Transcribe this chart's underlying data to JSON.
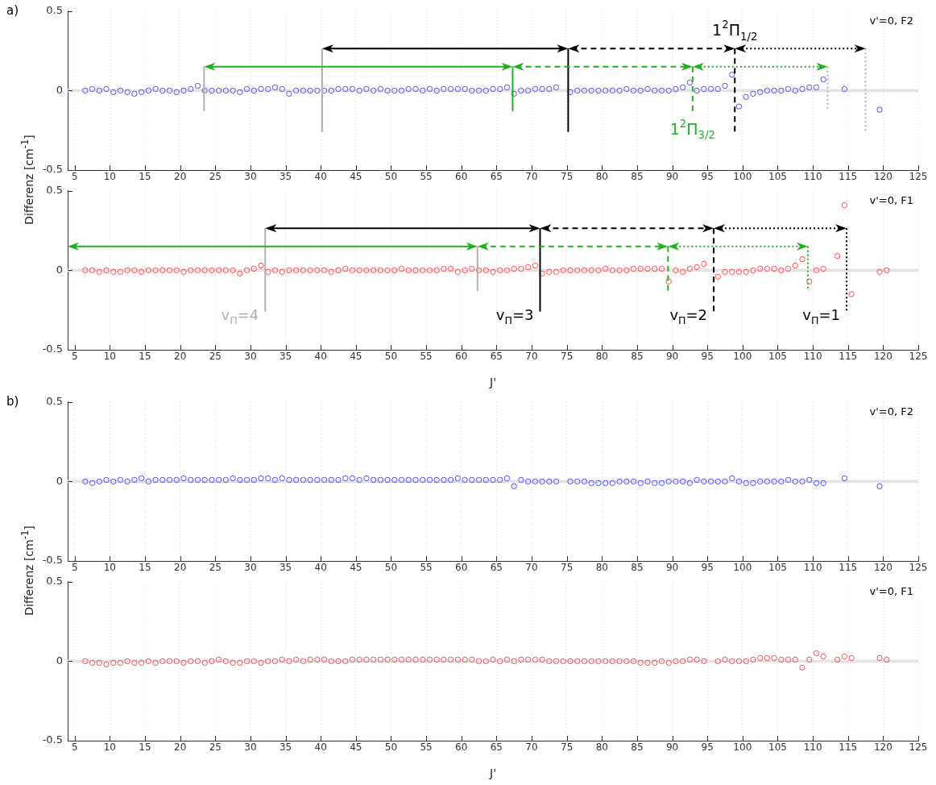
{
  "chart_data": [
    {
      "type": "scatter",
      "title": "a)",
      "subtitle": "v'=0, F2",
      "ylabel": "Differenz [cm$^{-1}$]",
      "marker": "circle",
      "grid": "x",
      "xlim": [
        4,
        125
      ],
      "xticks": [
        5,
        10,
        15,
        20,
        25,
        30,
        35,
        40,
        45,
        50,
        55,
        60,
        65,
        70,
        75,
        80,
        85,
        90,
        95,
        100,
        105,
        110,
        115,
        120,
        125
      ],
      "ylim": [
        -0.5,
        0.5
      ],
      "yticks": [
        -0.5,
        0,
        0.5
      ],
      "x": [
        6.5,
        7.5,
        8.5,
        9.5,
        10.5,
        11.5,
        12.5,
        13.5,
        14.5,
        15.5,
        16.5,
        17.5,
        18.5,
        19.5,
        20.5,
        21.5,
        22.5,
        23.5,
        24.5,
        25.5,
        26.5,
        27.5,
        28.5,
        29.5,
        30.5,
        31.5,
        32.5,
        33.5,
        34.5,
        35.5,
        36.5,
        37.5,
        38.5,
        39.5,
        40.5,
        41.5,
        42.5,
        43.5,
        44.5,
        45.5,
        46.5,
        47.5,
        48.5,
        49.5,
        50.5,
        51.5,
        52.5,
        53.5,
        54.5,
        55.5,
        56.5,
        57.5,
        58.5,
        59.5,
        60.5,
        61.5,
        62.5,
        63.5,
        64.5,
        65.5,
        66.5,
        67.5,
        68.5,
        69.5,
        70.5,
        71.5,
        72.5,
        73.5,
        75.5,
        76.5,
        77.5,
        78.5,
        79.5,
        80.5,
        81.5,
        82.5,
        83.5,
        84.5,
        85.5,
        86.5,
        87.5,
        88.5,
        89.5,
        90.5,
        91.5,
        92.5,
        93.5,
        94.5,
        95.5,
        96.5,
        97.5,
        98.5,
        99.5,
        100.5,
        101.5,
        102.5,
        103.5,
        104.5,
        105.5,
        106.5,
        107.5,
        108.5,
        109.5,
        110.5,
        111.5,
        114.5,
        119.5
      ],
      "series": [
        {
          "color": "#5050ff",
          "values": [
            0,
            0.01,
            0,
            0.01,
            -0.01,
            0,
            -0.01,
            -0.02,
            -0.01,
            0,
            0.01,
            0,
            0,
            -0.01,
            0,
            0.01,
            0.03,
            0,
            0,
            0,
            0,
            0,
            -0.01,
            0.01,
            0,
            0.01,
            0.01,
            0.02,
            0.01,
            -0.02,
            0,
            0,
            0,
            0,
            0,
            0,
            0.01,
            0.01,
            0.01,
            0,
            0.01,
            0,
            0.01,
            0,
            0,
            0,
            0.01,
            0.01,
            0,
            0.01,
            0,
            0.01,
            0.01,
            0.01,
            0.01,
            0,
            0,
            0,
            0.01,
            0.01,
            0.02,
            -0.02,
            0,
            0,
            0.01,
            0.01,
            0.01,
            0.02,
            -0.01,
            0,
            0,
            0,
            0,
            0,
            0,
            0,
            0.01,
            0,
            0,
            0.01,
            0,
            0,
            0,
            0.01,
            0.02,
            0.05,
            0,
            0.01,
            0.01,
            0.01,
            0.03,
            0.1,
            -0.1,
            -0.04,
            -0.02,
            -0.01,
            0,
            0,
            0,
            0.01,
            0,
            0.01,
            0.02,
            0.02,
            0.07,
            0.01,
            -0.12
          ]
        }
      ],
      "ref_lines": [
        {
          "axis": "x",
          "value": 23.4,
          "color": "#b0b0b0",
          "line_style": "solid"
        },
        {
          "axis": "x",
          "value": 40.2,
          "color": "#b0b0b0",
          "line_style": "solid"
        },
        {
          "axis": "x",
          "value": 67.3,
          "color": "#1db31d",
          "line_style": "solid"
        },
        {
          "axis": "x",
          "value": 75.2,
          "color": "#000000",
          "line_style": "solid"
        },
        {
          "axis": "x",
          "value": 92.9,
          "color": "#1db31d",
          "line_style": "dashed"
        },
        {
          "axis": "x",
          "value": 98.9,
          "color": "#000000",
          "line_style": "dashed"
        },
        {
          "axis": "x",
          "value": 112.1,
          "color": "#b0b0b0",
          "line_style": "dotted"
        },
        {
          "axis": "x",
          "value": 117.5,
          "color": "#b0b0b0",
          "line_style": "dotted"
        }
      ],
      "annotations": [
        {
          "text": "1$^{2}$Π$_{1/2}$",
          "x": 98.9,
          "y": 0.27
        },
        {
          "text": "1$^{2}$Π$_{3/2}$",
          "x": 92.9,
          "y": -0.13
        }
      ],
      "bands": [
        {
          "axis": "y",
          "from": -0.01,
          "to": 0.01,
          "color": "#e3e3e3"
        }
      ]
    },
    {
      "type": "scatter",
      "subtitle": "v'=0, F1",
      "xlabel": "J'",
      "marker": "circle",
      "grid": "x",
      "xlim": [
        4,
        125
      ],
      "xticks": [
        5,
        10,
        15,
        20,
        25,
        30,
        35,
        40,
        45,
        50,
        55,
        60,
        65,
        70,
        75,
        80,
        85,
        90,
        95,
        100,
        105,
        110,
        115,
        120,
        125
      ],
      "ylim": [
        -0.5,
        0.5
      ],
      "yticks": [
        -0.5,
        0,
        0.5
      ],
      "x": [
        6.5,
        7.5,
        8.5,
        9.5,
        10.5,
        11.5,
        12.5,
        13.5,
        14.5,
        15.5,
        16.5,
        17.5,
        18.5,
        19.5,
        20.5,
        21.5,
        22.5,
        23.5,
        24.5,
        25.5,
        26.5,
        27.5,
        28.5,
        29.5,
        30.5,
        31.5,
        32.5,
        33.5,
        34.5,
        35.5,
        36.5,
        37.5,
        38.5,
        39.5,
        40.5,
        41.5,
        42.5,
        43.5,
        44.5,
        45.5,
        46.5,
        47.5,
        48.5,
        49.5,
        50.5,
        51.5,
        52.5,
        53.5,
        54.5,
        55.5,
        56.5,
        57.5,
        58.5,
        59.5,
        60.5,
        61.5,
        62.5,
        63.5,
        64.5,
        65.5,
        66.5,
        67.5,
        68.5,
        69.5,
        70.5,
        71.5,
        72.5,
        73.5,
        74.5,
        75.5,
        76.5,
        77.5,
        78.5,
        79.5,
        80.5,
        81.5,
        82.5,
        83.5,
        84.5,
        85.5,
        86.5,
        87.5,
        88.5,
        89.5,
        90.5,
        91.5,
        92.5,
        93.5,
        94.5,
        96.5,
        97.5,
        98.5,
        99.5,
        100.5,
        101.5,
        102.5,
        103.5,
        104.5,
        105.5,
        106.5,
        107.5,
        108.5,
        109.5,
        110.5,
        111.5,
        113.5,
        114.5,
        115.5,
        119.5,
        120.5
      ],
      "series": [
        {
          "color": "#ff4d4d",
          "values": [
            0,
            0,
            -0.01,
            0,
            -0.01,
            -0.01,
            0,
            0,
            -0.01,
            0,
            0,
            0,
            0,
            0,
            -0.01,
            0,
            0,
            0,
            0,
            0,
            0,
            0,
            -0.02,
            0,
            0.01,
            0.03,
            -0.01,
            0,
            -0.01,
            0,
            0,
            0,
            0,
            0,
            0,
            -0.01,
            0,
            0.01,
            0,
            0,
            0,
            0,
            0,
            0,
            0,
            0.01,
            0,
            0,
            0,
            0,
            0,
            0.01,
            0.01,
            -0.01,
            0,
            0.01,
            0,
            0,
            -0.01,
            0,
            0,
            0.01,
            0.01,
            0.02,
            0.03,
            -0.02,
            -0.01,
            -0.01,
            0,
            0,
            0,
            0,
            0,
            0,
            0.01,
            0,
            0,
            0,
            0.01,
            0.01,
            0.01,
            0.01,
            0.01,
            -0.07,
            0,
            -0.01,
            0.01,
            0.02,
            0.04,
            -0.04,
            -0.01,
            -0.01,
            -0.01,
            -0.01,
            0,
            0.01,
            0.01,
            0.01,
            0,
            0.01,
            0.03,
            0.07,
            -0.07,
            0,
            0.01,
            0.09,
            0.41,
            -0.15,
            -0.01,
            0
          ]
        }
      ],
      "ref_lines": [
        {
          "axis": "x",
          "value": 32.1,
          "color": "#b0b0b0",
          "line_style": "solid"
        },
        {
          "axis": "x",
          "value": 62.3,
          "color": "#b0b0b0",
          "line_style": "solid"
        },
        {
          "axis": "x",
          "value": 71.2,
          "color": "#000000",
          "line_style": "solid"
        },
        {
          "axis": "x",
          "value": 89.4,
          "color": "#1db31d",
          "line_style": "dashed"
        },
        {
          "axis": "x",
          "value": 95.9,
          "color": "#000000",
          "line_style": "dashed"
        },
        {
          "axis": "x",
          "value": 109.3,
          "color": "#1db31d",
          "line_style": "dotted"
        },
        {
          "axis": "x",
          "value": 114.8,
          "color": "#000000",
          "line_style": "dotted"
        }
      ],
      "annotations": [
        {
          "text": "v$_{Π}$=4",
          "x": 32.1,
          "y": -0.26
        },
        {
          "text": "v$_{Π}$=3",
          "x": 71.2,
          "y": -0.26
        },
        {
          "text": "v$_{Π}$=2",
          "x": 95.9,
          "y": -0.26
        },
        {
          "text": "v$_{Π}$=1",
          "x": 114.8,
          "y": -0.26
        }
      ],
      "bands": [
        {
          "axis": "y",
          "from": -0.01,
          "to": 0.01,
          "color": "#e3e3e3"
        }
      ]
    },
    {
      "type": "scatter",
      "title": "b)",
      "subtitle": "v'=0, F2",
      "ylabel": "Differenz [cm$^{-1}$]",
      "marker": "circle",
      "grid": "x",
      "xlim": [
        4,
        125
      ],
      "xticks": [
        5,
        10,
        15,
        20,
        25,
        30,
        35,
        40,
        45,
        50,
        55,
        60,
        65,
        70,
        75,
        80,
        85,
        90,
        95,
        100,
        105,
        110,
        115,
        120,
        125
      ],
      "ylim": [
        -0.5,
        0.5
      ],
      "yticks": [
        -0.5,
        0,
        0.5
      ],
      "x": [
        6.5,
        7.5,
        8.5,
        9.5,
        10.5,
        11.5,
        12.5,
        13.5,
        14.5,
        15.5,
        16.5,
        17.5,
        18.5,
        19.5,
        20.5,
        21.5,
        22.5,
        23.5,
        24.5,
        25.5,
        26.5,
        27.5,
        28.5,
        29.5,
        30.5,
        31.5,
        32.5,
        33.5,
        34.5,
        35.5,
        36.5,
        37.5,
        38.5,
        39.5,
        40.5,
        41.5,
        42.5,
        43.5,
        44.5,
        45.5,
        46.5,
        47.5,
        48.5,
        49.5,
        50.5,
        51.5,
        52.5,
        53.5,
        54.5,
        55.5,
        56.5,
        57.5,
        58.5,
        59.5,
        60.5,
        61.5,
        62.5,
        63.5,
        64.5,
        65.5,
        66.5,
        67.5,
        68.5,
        69.5,
        70.5,
        71.5,
        72.5,
        73.5,
        75.5,
        76.5,
        77.5,
        78.5,
        79.5,
        80.5,
        81.5,
        82.5,
        83.5,
        84.5,
        85.5,
        86.5,
        87.5,
        88.5,
        89.5,
        90.5,
        91.5,
        92.5,
        93.5,
        94.5,
        95.5,
        96.5,
        97.5,
        98.5,
        99.5,
        100.5,
        101.5,
        102.5,
        103.5,
        104.5,
        105.5,
        106.5,
        107.5,
        108.5,
        109.5,
        110.5,
        111.5,
        114.5,
        119.5
      ],
      "series": [
        {
          "color": "#5050ff",
          "values": [
            0,
            -0.01,
            0,
            0.01,
            0,
            0.01,
            0,
            0.01,
            0.02,
            0,
            0.01,
            0.01,
            0.01,
            0.01,
            0.02,
            0.01,
            0.01,
            0.01,
            0.01,
            0.01,
            0.01,
            0.02,
            0.01,
            0.01,
            0.01,
            0.02,
            0.02,
            0.01,
            0.02,
            0.01,
            0.01,
            0.01,
            0.01,
            0.01,
            0.01,
            0.01,
            0.01,
            0.02,
            0.02,
            0.01,
            0.02,
            0.01,
            0.01,
            0.01,
            0.01,
            0.01,
            0.01,
            0.01,
            0.01,
            0.01,
            0.01,
            0.01,
            0.01,
            0.02,
            0.01,
            0.01,
            0.01,
            0.01,
            0.01,
            0.01,
            0.02,
            -0.03,
            0.01,
            0,
            0,
            0,
            0,
            0,
            0,
            0,
            0,
            -0.01,
            -0.01,
            -0.01,
            -0.01,
            0,
            0,
            0,
            -0.01,
            0,
            -0.01,
            -0.01,
            0,
            0,
            0,
            -0.01,
            0.01,
            0,
            0,
            0,
            0,
            0.02,
            0,
            -0.01,
            -0.01,
            0,
            0,
            0,
            0,
            0.01,
            0,
            0,
            0.01,
            -0.01,
            -0.01,
            0.02,
            -0.03
          ]
        }
      ],
      "bands": [
        {
          "axis": "y",
          "from": -0.01,
          "to": 0.01,
          "color": "#e3e3e3"
        }
      ]
    },
    {
      "type": "scatter",
      "subtitle": "v'=0, F1",
      "xlabel": "J'",
      "marker": "circle",
      "grid": "x",
      "xlim": [
        4,
        125
      ],
      "xticks": [
        5,
        10,
        15,
        20,
        25,
        30,
        35,
        40,
        45,
        50,
        55,
        60,
        65,
        70,
        75,
        80,
        85,
        90,
        95,
        100,
        105,
        110,
        115,
        120,
        125
      ],
      "ylim": [
        -0.5,
        0.5
      ],
      "yticks": [
        -0.5,
        0,
        0.5
      ],
      "x": [
        6.5,
        7.5,
        8.5,
        9.5,
        10.5,
        11.5,
        12.5,
        13.5,
        14.5,
        15.5,
        16.5,
        17.5,
        18.5,
        19.5,
        20.5,
        21.5,
        22.5,
        23.5,
        24.5,
        25.5,
        26.5,
        27.5,
        28.5,
        29.5,
        30.5,
        31.5,
        32.5,
        33.5,
        34.5,
        35.5,
        36.5,
        37.5,
        38.5,
        39.5,
        40.5,
        41.5,
        42.5,
        43.5,
        44.5,
        45.5,
        46.5,
        47.5,
        48.5,
        49.5,
        50.5,
        51.5,
        52.5,
        53.5,
        54.5,
        55.5,
        56.5,
        57.5,
        58.5,
        59.5,
        60.5,
        61.5,
        62.5,
        63.5,
        64.5,
        65.5,
        66.5,
        67.5,
        68.5,
        69.5,
        70.5,
        71.5,
        72.5,
        73.5,
        74.5,
        75.5,
        76.5,
        77.5,
        78.5,
        79.5,
        80.5,
        81.5,
        82.5,
        83.5,
        84.5,
        85.5,
        86.5,
        87.5,
        88.5,
        89.5,
        90.5,
        91.5,
        92.5,
        93.5,
        94.5,
        96.5,
        97.5,
        98.5,
        99.5,
        100.5,
        101.5,
        102.5,
        103.5,
        104.5,
        105.5,
        106.5,
        107.5,
        108.5,
        109.5,
        110.5,
        111.5,
        113.5,
        114.5,
        115.5,
        119.5,
        120.5
      ],
      "series": [
        {
          "color": "#ff4d4d",
          "values": [
            0,
            -0.01,
            -0.01,
            -0.02,
            -0.01,
            -0.01,
            0,
            -0.01,
            -0.01,
            0,
            -0.01,
            0,
            0,
            0,
            -0.01,
            0,
            0,
            -0.01,
            0,
            0.01,
            0,
            -0.01,
            -0.01,
            0,
            0,
            -0.01,
            0,
            0,
            0.01,
            0,
            0.01,
            0,
            0.01,
            0.01,
            0.01,
            0,
            0,
            0,
            0.01,
            0.01,
            0.01,
            0.01,
            0.01,
            0.01,
            0.01,
            0.01,
            0.01,
            0.01,
            0.01,
            0.01,
            0.01,
            0.01,
            0.01,
            0.01,
            0.01,
            0.01,
            0,
            0,
            0.01,
            0,
            0.01,
            0,
            0.01,
            0.01,
            0.01,
            0.01,
            0,
            0,
            0,
            0,
            0,
            0,
            0,
            0,
            0,
            0,
            0,
            0,
            0,
            -0.01,
            -0.01,
            -0.01,
            0,
            -0.01,
            0,
            0,
            0.01,
            0.01,
            0,
            0,
            0.01,
            0,
            0,
            0,
            0.01,
            0.02,
            0.02,
            0.02,
            0.01,
            0.01,
            0.01,
            -0.04,
            0.01,
            0.05,
            0.03,
            0.01,
            0.03,
            0.02,
            0.02,
            0.01
          ]
        }
      ],
      "bands": [
        {
          "axis": "y",
          "from": -0.01,
          "to": 0.01,
          "color": "#e3e3e3"
        }
      ]
    }
  ]
}
